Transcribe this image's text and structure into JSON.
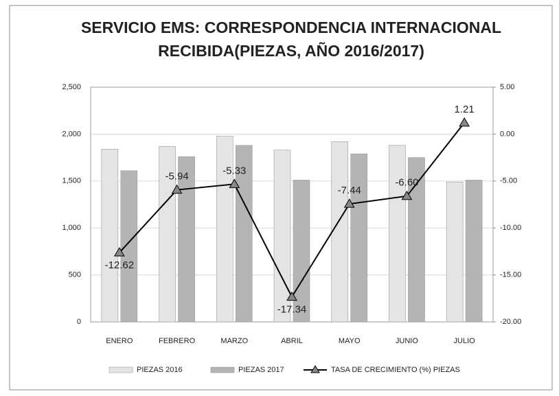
{
  "chart_data": {
    "type": "bar-line",
    "title": [
      "SERVICIO EMS: CORRESPONDENCIA INTERNACIONAL",
      "RECIBIDA(PIEZAS, AÑO 2016/2017)"
    ],
    "categories": [
      "ENERO",
      "FEBRERO",
      "MARZO",
      "ABRIL",
      "MAYO",
      "JUNIO",
      "JULIO"
    ],
    "series": [
      {
        "name": "PIEZAS 2016",
        "type": "bar",
        "color": "#e4e4e4",
        "values": [
          1840,
          1870,
          1980,
          1830,
          1920,
          1880,
          1490
        ]
      },
      {
        "name": "PIEZAS 2017",
        "type": "bar",
        "color": "#b4b4b4",
        "values": [
          1610,
          1760,
          1880,
          1510,
          1790,
          1750,
          1510
        ]
      },
      {
        "name": "TASA DE CRECIMIENTO  (%) PIEZAS",
        "type": "line",
        "axis": "y2",
        "color": "#000000",
        "values": [
          -12.62,
          -5.94,
          -5.33,
          -17.34,
          -7.44,
          -6.6,
          1.21
        ],
        "value_labels": [
          "-12.62",
          "-5.94",
          "-5.33",
          "-17.34",
          "-7.44",
          "-6.60",
          "1.21"
        ]
      }
    ],
    "ylim": [
      0,
      2500
    ],
    "yticks": [
      0,
      500,
      {
        "value": 1000,
        "label": "1,000"
      },
      {
        "value": 1500,
        "label": "1,500"
      },
      {
        "value": 2000,
        "label": "2,000"
      },
      {
        "value": 2500,
        "label": "2,500"
      }
    ],
    "y2lim": [
      -20,
      5
    ],
    "y2ticks": [
      {
        "value": -20,
        "label": "-20.00"
      },
      {
        "value": -15,
        "label": "-15.00"
      },
      {
        "value": -10,
        "label": "-10.00"
      },
      {
        "value": -5,
        "label": "-5.00"
      },
      {
        "value": 0,
        "label": "0.00"
      },
      {
        "value": 5,
        "label": "5.00"
      }
    ],
    "grid": true,
    "legend": "bottom"
  }
}
